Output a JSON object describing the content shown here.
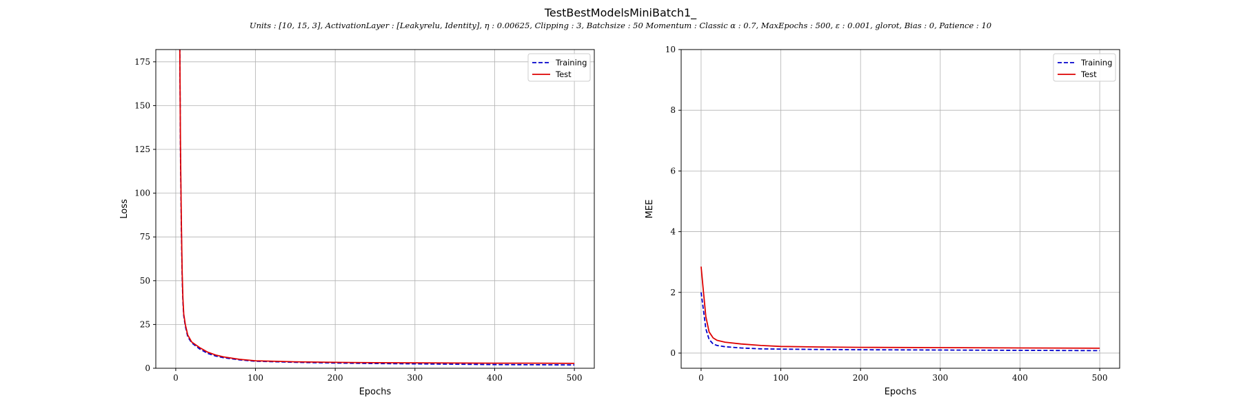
{
  "figure": {
    "title": "TestBestModelsMiniBatch1_",
    "subtitle": "Units : [10, 15, 3], ActivationLayer : [Leakyrelu, Identity], η : 0.00625, Clipping : 3, Batchsize : 50 Momentum : Classic α : 0.7, MaxEpochs : 500, ε : 0.001, glorot, Bias : 0, Patience : 10"
  },
  "colors": {
    "training": "#0000cc",
    "test": "#dd0000",
    "grid": "#b0b0b0"
  },
  "chart_data": [
    {
      "type": "line",
      "xlabel": "Epochs",
      "ylabel": "Loss",
      "xlim": [
        -25,
        525
      ],
      "ylim": [
        0,
        182
      ],
      "xticks": [
        0,
        100,
        200,
        300,
        400,
        500
      ],
      "yticks": [
        0,
        25,
        50,
        75,
        100,
        125,
        150,
        175
      ],
      "grid": true,
      "legend_position": "top-right",
      "series": [
        {
          "name": "Training",
          "style": "dashed",
          "x": [
            5,
            6,
            7,
            8,
            9,
            10,
            12,
            15,
            20,
            30,
            40,
            50,
            60,
            80,
            100,
            150,
            200,
            250,
            300,
            350,
            400,
            450,
            500
          ],
          "y": [
            190,
            120,
            80,
            52,
            38,
            30,
            24,
            18,
            14.5,
            11,
            8.5,
            7,
            6,
            4.8,
            4,
            3.4,
            3,
            2.7,
            2.5,
            2.3,
            2.1,
            2,
            1.9
          ]
        },
        {
          "name": "Test",
          "style": "solid",
          "x": [
            5,
            6,
            7,
            8,
            9,
            10,
            12,
            15,
            20,
            30,
            40,
            50,
            60,
            80,
            100,
            150,
            200,
            250,
            300,
            350,
            400,
            450,
            500
          ],
          "y": [
            190,
            125,
            85,
            55,
            40,
            31,
            25,
            19,
            15,
            11.8,
            9.2,
            7.6,
            6.5,
            5.1,
            4.3,
            3.7,
            3.4,
            3.2,
            3.1,
            3,
            2.9,
            2.9,
            2.8
          ]
        }
      ]
    },
    {
      "type": "line",
      "xlabel": "Epochs",
      "ylabel": "MEE",
      "xlim": [
        -25,
        525
      ],
      "ylim": [
        -0.5,
        10
      ],
      "xticks": [
        0,
        100,
        200,
        300,
        400,
        500
      ],
      "yticks": [
        0,
        2,
        4,
        6,
        8,
        10
      ],
      "grid": true,
      "legend_position": "top-right",
      "series": [
        {
          "name": "Training",
          "style": "dashed",
          "x": [
            0,
            3,
            6,
            10,
            15,
            20,
            30,
            50,
            75,
            100,
            150,
            200,
            300,
            400,
            500
          ],
          "y": [
            2.0,
            1.4,
            0.8,
            0.45,
            0.3,
            0.25,
            0.21,
            0.17,
            0.14,
            0.13,
            0.12,
            0.11,
            0.1,
            0.09,
            0.08
          ]
        },
        {
          "name": "Test",
          "style": "solid",
          "x": [
            0,
            3,
            6,
            10,
            15,
            20,
            30,
            50,
            75,
            100,
            150,
            200,
            300,
            400,
            500
          ],
          "y": [
            2.85,
            2.0,
            1.2,
            0.7,
            0.5,
            0.42,
            0.36,
            0.3,
            0.25,
            0.22,
            0.2,
            0.19,
            0.18,
            0.17,
            0.16
          ]
        }
      ]
    }
  ]
}
